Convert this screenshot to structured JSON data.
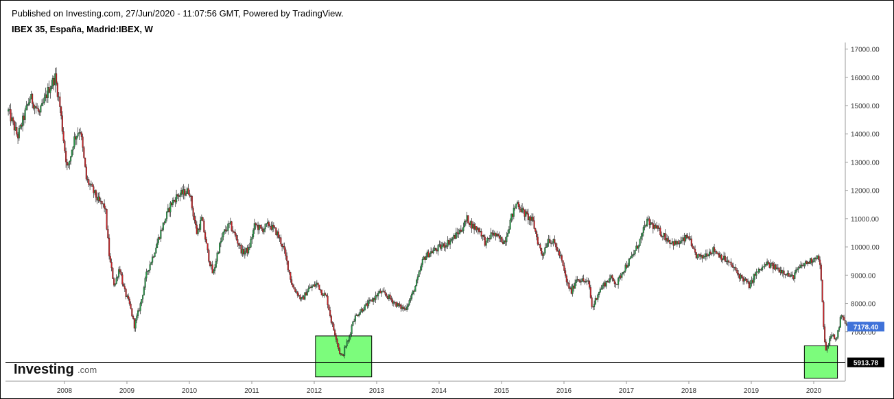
{
  "header": {
    "published": "Published on Investing.com, 27/Jun/2020 - 11:07:56 GMT, Powered by TradingView.",
    "symbol": "IBEX 35, España, Madrid:IBEX, W"
  },
  "logo": {
    "main": "Investing",
    "suffix": ".com"
  },
  "colors": {
    "up": "#2a9a4a",
    "down": "#c8262a",
    "highlight": "#7cfc7c",
    "last_price_bg": "#3f72d9",
    "support_bg": "#000000"
  },
  "chart_data": {
    "type": "candlestick",
    "title": "IBEX 35, España, Madrid:IBEX, W",
    "x_range": [
      2007.1,
      2020.55
    ],
    "ylim": [
      5600,
      17250
    ],
    "y_ticks": [
      "17000.00",
      "16000.00",
      "15000.00",
      "14000.00",
      "13000.00",
      "12000.00",
      "11000.00",
      "10000.00",
      "9000.00",
      "8000.00",
      "7000.00"
    ],
    "x_ticks": [
      "2008",
      "2009",
      "2010",
      "2011",
      "2012",
      "2013",
      "2014",
      "2015",
      "2016",
      "2017",
      "2018",
      "2019",
      "2020"
    ],
    "path": [
      [
        2007.1,
        14800
      ],
      [
        2007.25,
        13900
      ],
      [
        2007.45,
        15300
      ],
      [
        2007.6,
        14700
      ],
      [
        2007.75,
        15600
      ],
      [
        2007.85,
        16000
      ],
      [
        2007.92,
        15100
      ],
      [
        2008.0,
        13500
      ],
      [
        2008.05,
        12700
      ],
      [
        2008.15,
        13800
      ],
      [
        2008.25,
        14200
      ],
      [
        2008.35,
        12400
      ],
      [
        2008.45,
        12000
      ],
      [
        2008.55,
        11600
      ],
      [
        2008.65,
        11400
      ],
      [
        2008.72,
        9600
      ],
      [
        2008.8,
        8600
      ],
      [
        2008.88,
        9300
      ],
      [
        2008.95,
        8500
      ],
      [
        2009.05,
        7900
      ],
      [
        2009.12,
        7200
      ],
      [
        2009.22,
        8000
      ],
      [
        2009.32,
        9100
      ],
      [
        2009.42,
        9700
      ],
      [
        2009.55,
        10600
      ],
      [
        2009.7,
        11500
      ],
      [
        2009.8,
        11800
      ],
      [
        2009.9,
        11900
      ],
      [
        2010.0,
        12000
      ],
      [
        2010.05,
        11300
      ],
      [
        2010.12,
        10500
      ],
      [
        2010.2,
        11000
      ],
      [
        2010.3,
        9700
      ],
      [
        2010.38,
        9000
      ],
      [
        2010.45,
        9800
      ],
      [
        2010.55,
        10500
      ],
      [
        2010.65,
        10800
      ],
      [
        2010.75,
        10300
      ],
      [
        2010.85,
        9800
      ],
      [
        2010.95,
        9900
      ],
      [
        2011.05,
        10800
      ],
      [
        2011.15,
        10600
      ],
      [
        2011.28,
        10800
      ],
      [
        2011.4,
        10500
      ],
      [
        2011.5,
        10000
      ],
      [
        2011.58,
        9300
      ],
      [
        2011.65,
        8600
      ],
      [
        2011.72,
        8400
      ],
      [
        2011.8,
        8100
      ],
      [
        2011.9,
        8500
      ],
      [
        2012.05,
        8700
      ],
      [
        2012.12,
        8400
      ],
      [
        2012.2,
        8200
      ],
      [
        2012.28,
        7300
      ],
      [
        2012.35,
        6800
      ],
      [
        2012.4,
        6300
      ],
      [
        2012.45,
        6100
      ],
      [
        2012.5,
        6500
      ],
      [
        2012.55,
        6700
      ],
      [
        2012.62,
        7400
      ],
      [
        2012.72,
        7700
      ],
      [
        2012.82,
        7900
      ],
      [
        2012.92,
        8100
      ],
      [
        2013.05,
        8400
      ],
      [
        2013.15,
        8300
      ],
      [
        2013.25,
        8100
      ],
      [
        2013.35,
        7900
      ],
      [
        2013.45,
        7800
      ],
      [
        2013.55,
        8200
      ],
      [
        2013.65,
        8800
      ],
      [
        2013.75,
        9600
      ],
      [
        2013.85,
        9800
      ],
      [
        2013.95,
        9900
      ],
      [
        2014.1,
        10100
      ],
      [
        2014.22,
        10300
      ],
      [
        2014.35,
        10600
      ],
      [
        2014.45,
        11000
      ],
      [
        2014.55,
        10700
      ],
      [
        2014.65,
        10600
      ],
      [
        2014.75,
        10100
      ],
      [
        2014.85,
        10500
      ],
      [
        2014.95,
        10300
      ],
      [
        2015.05,
        10200
      ],
      [
        2015.15,
        11000
      ],
      [
        2015.25,
        11600
      ],
      [
        2015.32,
        11300
      ],
      [
        2015.4,
        11100
      ],
      [
        2015.5,
        10900
      ],
      [
        2015.58,
        10200
      ],
      [
        2015.65,
        9700
      ],
      [
        2015.75,
        10300
      ],
      [
        2015.85,
        10100
      ],
      [
        2015.95,
        9600
      ],
      [
        2016.05,
        8700
      ],
      [
        2016.12,
        8400
      ],
      [
        2016.2,
        8900
      ],
      [
        2016.3,
        8800
      ],
      [
        2016.4,
        8700
      ],
      [
        2016.45,
        7800
      ],
      [
        2016.55,
        8400
      ],
      [
        2016.65,
        8700
      ],
      [
        2016.75,
        8900
      ],
      [
        2016.85,
        8700
      ],
      [
        2016.95,
        9200
      ],
      [
        2017.05,
        9500
      ],
      [
        2017.15,
        9900
      ],
      [
        2017.25,
        10400
      ],
      [
        2017.32,
        10900
      ],
      [
        2017.4,
        10800
      ],
      [
        2017.5,
        10600
      ],
      [
        2017.6,
        10400
      ],
      [
        2017.7,
        10200
      ],
      [
        2017.8,
        10100
      ],
      [
        2017.9,
        10200
      ],
      [
        2018.0,
        10400
      ],
      [
        2018.05,
        9900
      ],
      [
        2018.12,
        9700
      ],
      [
        2018.2,
        9600
      ],
      [
        2018.3,
        9800
      ],
      [
        2018.4,
        9900
      ],
      [
        2018.5,
        9700
      ],
      [
        2018.6,
        9500
      ],
      [
        2018.7,
        9300
      ],
      [
        2018.8,
        9000
      ],
      [
        2018.9,
        8800
      ],
      [
        2018.98,
        8600
      ],
      [
        2019.05,
        9000
      ],
      [
        2019.15,
        9200
      ],
      [
        2019.25,
        9400
      ],
      [
        2019.35,
        9300
      ],
      [
        2019.45,
        9200
      ],
      [
        2019.55,
        9100
      ],
      [
        2019.65,
        8900
      ],
      [
        2019.75,
        9200
      ],
      [
        2019.85,
        9400
      ],
      [
        2019.95,
        9500
      ],
      [
        2020.05,
        9700
      ],
      [
        2020.1,
        9400
      ],
      [
        2020.13,
        8400
      ],
      [
        2020.16,
        7000
      ],
      [
        2020.2,
        6300
      ],
      [
        2020.25,
        6700
      ],
      [
        2020.3,
        6900
      ],
      [
        2020.35,
        6700
      ],
      [
        2020.4,
        7100
      ],
      [
        2020.45,
        7700
      ],
      [
        2020.5,
        7300
      ],
      [
        2020.54,
        7178
      ]
    ],
    "last_price": "7178.40",
    "support_level": 5913.78,
    "support_label": "5913.78",
    "highlight_zones": [
      {
        "x": [
          2012.02,
          2012.92
        ],
        "y": [
          5400,
          6850
        ]
      },
      {
        "x": [
          2019.85,
          2020.38
        ],
        "y": [
          5350,
          6500
        ]
      }
    ]
  }
}
